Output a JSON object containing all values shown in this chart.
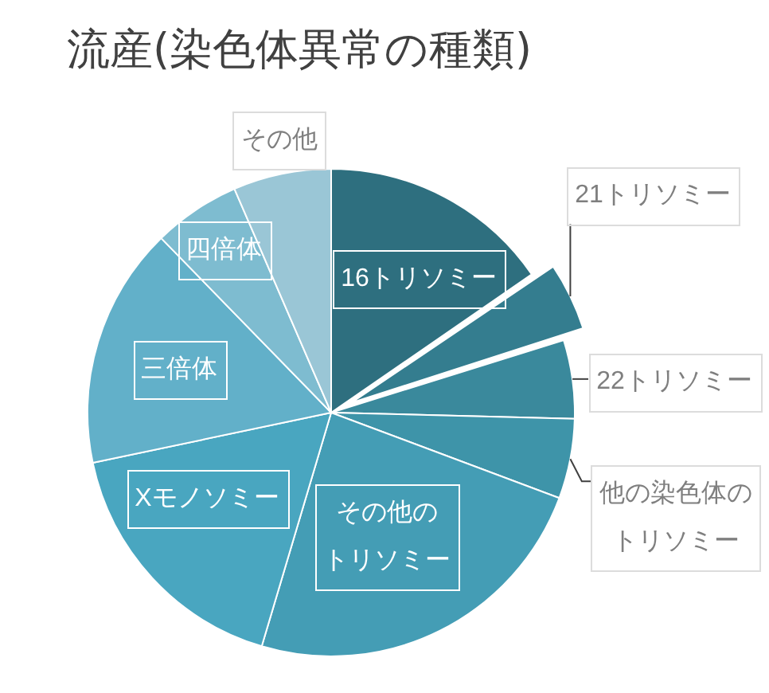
{
  "chart_data": {
    "type": "pie",
    "title": "流産(染色体異常の種類)",
    "categories": [
      "16トリソミー",
      "21トリソミー",
      "22トリソミー",
      "他の染色体のトリソミー",
      "その他のトリソミー",
      "Xモノソミー",
      "三倍体",
      "四倍体",
      "その他"
    ],
    "values": [
      15.4,
      4.8,
      5.2,
      5.3,
      23.9,
      17.1,
      16,
      5.8,
      6.5
    ],
    "colors": [
      "#2e6f7f",
      "#347d8f",
      "#3a899c",
      "#3e94a9",
      "#449db5",
      "#49a6c0",
      "#62b0c9",
      "#7ebcd0",
      "#9ac6d6"
    ]
  }
}
